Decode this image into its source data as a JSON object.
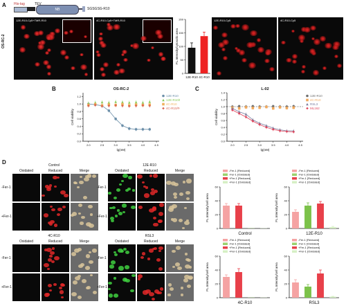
{
  "panel_labels": {
    "a": "A",
    "b": "B",
    "c": "C",
    "d": "D"
  },
  "construct": {
    "his_tag": "His-tag",
    "tev": "TEV",
    "nb": "NB",
    "linker": "SGSGSG-R10",
    "colors": {
      "his": "#a8b7d0",
      "tev": "#e8e8e8",
      "nb": "#7d8fb2",
      "r10": "#9aa7c4"
    }
  },
  "panel_a": {
    "row_label": "OS-RC-2",
    "images": [
      {
        "label": "12E-R10-Cy5+TMR-R10"
      },
      {
        "label": "4C-R10-Cy5+TMR-R10"
      },
      {
        "label": "12E-R10-Cy5"
      },
      {
        "label": "4C-R10-Cy5"
      }
    ]
  },
  "chart_data": [
    {
      "id": "a_bar",
      "type": "bar",
      "ylabel": "FL.Intensity/cytosolic area",
      "categories": [
        "12E-R10",
        "4C-R10"
      ],
      "values": [
        95,
        138
      ],
      "errors": [
        18,
        15
      ],
      "colors": [
        "#111111",
        "#ee2222"
      ],
      "ylim": [
        0,
        200
      ],
      "yticks": [
        0,
        50,
        100,
        150,
        200
      ]
    },
    {
      "id": "b_curve",
      "type": "scatter",
      "title": "OS-RC-2",
      "xlabel": "lg(nM)",
      "ylabel": "Cell viability",
      "xlim": [
        1.8,
        4.6
      ],
      "ylim": [
        0,
        1.3
      ],
      "xticks": [
        2.0,
        2.5,
        3.0,
        3.5,
        4.0,
        4.5
      ],
      "yticks": [
        0.0,
        0.2,
        0.4,
        0.6,
        0.8,
        1.0,
        1.2
      ],
      "series": [
        {
          "name": "12E-R10",
          "color": "#6c8fa9",
          "marker": "circle",
          "fit": true,
          "x": [
            2.0,
            2.25,
            2.5,
            2.75,
            3.0,
            3.25,
            3.5,
            3.75,
            4.0,
            4.25
          ],
          "y": [
            1.0,
            0.98,
            0.95,
            0.82,
            0.6,
            0.42,
            0.34,
            0.32,
            0.32,
            0.32
          ]
        },
        {
          "name": "12E-R10/Fer-1",
          "color": "#8acb58",
          "marker": "triangle",
          "fit": false,
          "x": [
            2.0,
            2.25,
            2.5,
            2.75,
            3.0,
            3.25,
            3.5,
            3.75,
            4.0,
            4.25
          ],
          "y": [
            1.02,
            1.04,
            1.05,
            1.04,
            1.06,
            1.05,
            1.04,
            1.05,
            1.04,
            1.06
          ]
        },
        {
          "name": "4C-R10",
          "color": "#f1b25d",
          "marker": "square",
          "fit": false,
          "x": [
            2.0,
            2.25,
            2.5,
            2.75,
            3.0,
            3.25,
            3.5,
            3.75,
            4.0,
            4.25
          ],
          "y": [
            0.97,
            0.99,
            0.96,
            0.98,
            0.97,
            0.99,
            0.96,
            0.98,
            0.97,
            0.98
          ]
        },
        {
          "name": "4C-R10/Fer-1",
          "color": "#d8624e",
          "marker": "diamond",
          "fit": false,
          "x": [
            2.0,
            2.25,
            2.5,
            2.75,
            3.0,
            3.25,
            3.5,
            3.75,
            4.0,
            4.25
          ],
          "y": [
            0.95,
            0.97,
            0.94,
            0.95,
            0.96,
            0.95,
            0.94,
            0.95,
            0.96,
            0.95
          ]
        }
      ]
    },
    {
      "id": "c_curve",
      "type": "scatter",
      "title": "L-02",
      "xlabel": "lg(nM)",
      "ylabel": "Cell viability",
      "xlim": [
        1.8,
        4.6
      ],
      "ylim": [
        0,
        1.4
      ],
      "xticks": [
        2.0,
        2.5,
        3.0,
        3.5,
        4.0,
        4.5
      ],
      "yticks": [
        0.0,
        0.2,
        0.4,
        0.6,
        0.8,
        1.0,
        1.2,
        1.4
      ],
      "series": [
        {
          "name": "12E-R10",
          "color": "#6f6f6f",
          "marker": "circle",
          "fit": false,
          "x": [
            2.0,
            2.25,
            2.5,
            2.75,
            3.0,
            3.25,
            3.5,
            3.75,
            4.0,
            4.25
          ],
          "y": [
            1.0,
            1.01,
            1.0,
            1.01,
            1.0,
            1.0,
            1.01,
            1.0,
            1.0,
            1.01
          ]
        },
        {
          "name": "4C-R10",
          "color": "#f1a95d",
          "marker": "square",
          "fit": false,
          "x": [
            2.0,
            2.25,
            2.5,
            2.75,
            3.0,
            3.25,
            3.5,
            3.75,
            4.0,
            4.25
          ],
          "y": [
            0.97,
            0.95,
            0.98,
            0.96,
            0.97,
            0.99,
            0.95,
            0.98,
            0.96,
            0.97
          ]
        },
        {
          "name": "RSL3",
          "color": "#7a7c9e",
          "marker": "triangle",
          "fit": true,
          "x": [
            2.0,
            2.25,
            2.5,
            2.75,
            3.0,
            3.25,
            3.5,
            3.75,
            4.0,
            4.25
          ],
          "y": [
            0.95,
            0.85,
            0.78,
            0.62,
            0.52,
            0.45,
            0.38,
            0.33,
            0.3,
            0.3
          ]
        },
        {
          "name": "ML162",
          "color": "#e0435a",
          "marker": "diamond",
          "fit": true,
          "x": [
            2.0,
            2.25,
            2.5,
            2.75,
            3.0,
            3.25,
            3.5,
            3.75,
            4.0,
            4.25
          ],
          "y": [
            0.9,
            0.8,
            0.7,
            0.58,
            0.48,
            0.4,
            0.34,
            0.3,
            0.28,
            0.27
          ]
        }
      ]
    },
    {
      "id": "d_bar_control",
      "type": "bar",
      "title": "Control",
      "ylabel": "FL.Intensity/cell area",
      "ylim": [
        0,
        60
      ],
      "yticks": [
        0,
        20,
        40,
        60
      ],
      "categories": [
        "-Fer-1 [Reduced]",
        "+Fer-1 [Reduced]",
        "-Fer-1 [Oxidated]",
        "+Fer-1 [Oxidated]"
      ],
      "values": [
        33,
        33,
        0.3,
        0.3
      ],
      "errors": [
        3,
        3,
        0,
        0
      ],
      "colors": [
        "#f5a3a3",
        "#e8404a",
        "#9bd16d",
        "#d6efc4"
      ]
    },
    {
      "id": "d_bar_12e",
      "type": "bar",
      "title": "12E-R10",
      "ylabel": "FL.Intensity/cell area",
      "ylim": [
        0,
        60
      ],
      "yticks": [
        0,
        20,
        40,
        60
      ],
      "categories": [
        "-Fer-1 [Reduced]",
        "-Fer-1 [Oxidated]",
        "+Fer-1 [Reduced]",
        "+Fer-1 [Oxidated]"
      ],
      "values": [
        24,
        33,
        36,
        2
      ],
      "errors": [
        3,
        4,
        3,
        1
      ],
      "colors": [
        "#f5a3a3",
        "#7cc24a",
        "#e8404a",
        "#d6efc4"
      ]
    },
    {
      "id": "d_bar_4c",
      "type": "bar",
      "title": "4C-R10",
      "ylabel": "FL.Intensity/cell area",
      "ylim": [
        0,
        60
      ],
      "yticks": [
        0,
        20,
        40,
        60
      ],
      "categories": [
        "-Fer-1 [Reduced]",
        "+Fer-1 [Reduced]",
        "-Fer-1 [Oxidated]",
        "+Fer-1 [Oxidated]"
      ],
      "values": [
        30,
        37,
        0.3,
        0.3
      ],
      "errors": [
        3,
        5,
        0,
        0
      ],
      "colors": [
        "#f5a3a3",
        "#e8404a",
        "#9bd16d",
        "#d6efc4"
      ]
    },
    {
      "id": "d_bar_rsl3",
      "type": "bar",
      "title": "RSL3",
      "ylabel": "FL.Intensity/cell area",
      "ylim": [
        0,
        60
      ],
      "yticks": [
        0,
        20,
        40,
        60
      ],
      "categories": [
        "-Fer-1 [Reduced]",
        "-Fer-1 [Oxidated]",
        "+Fer-1 [Reduced]",
        "+Fer-1 [Oxidated]"
      ],
      "values": [
        22,
        16,
        35,
        1.5
      ],
      "errors": [
        4,
        3,
        5,
        0.5
      ],
      "colors": [
        "#f5a3a3",
        "#7cc24a",
        "#e8404a",
        "#d6efc4"
      ]
    }
  ],
  "d_legend": [
    {
      "label": "-Fer-1 [Reduced]",
      "color": "#f5a3a3"
    },
    {
      "label": "-Fer-1 [Oxidated]",
      "color": "#9bd16d"
    },
    {
      "label": "+Fer-1 [Reduced]",
      "color": "#e8404a"
    },
    {
      "label": "+Fer-1 [Oxidated]",
      "color": "#d6efc4"
    }
  ],
  "panel_d": {
    "groups": [
      {
        "title": "Control",
        "cols": [
          "Oxidated",
          "Reduced",
          "Merge"
        ],
        "rows": [
          "-Fer-1",
          "+Fer-1"
        ],
        "green": false
      },
      {
        "title": "12E-R10",
        "cols": [
          "Oxidated",
          "Reduced",
          "Merge"
        ],
        "rows": [
          "-Fer-1",
          "+Fer-1"
        ],
        "green": true
      },
      {
        "title": "4C-R10",
        "cols": [
          "Oxidated",
          "Reduced",
          "Merge"
        ],
        "rows": [
          "-Fer-1",
          "+Fer-1"
        ],
        "green": false
      },
      {
        "title": "RSL3",
        "cols": [
          "Oxidated",
          "Reduced",
          "Merge"
        ],
        "rows": [
          "-Fer-1",
          "+Fer-1"
        ],
        "green": true
      }
    ]
  }
}
